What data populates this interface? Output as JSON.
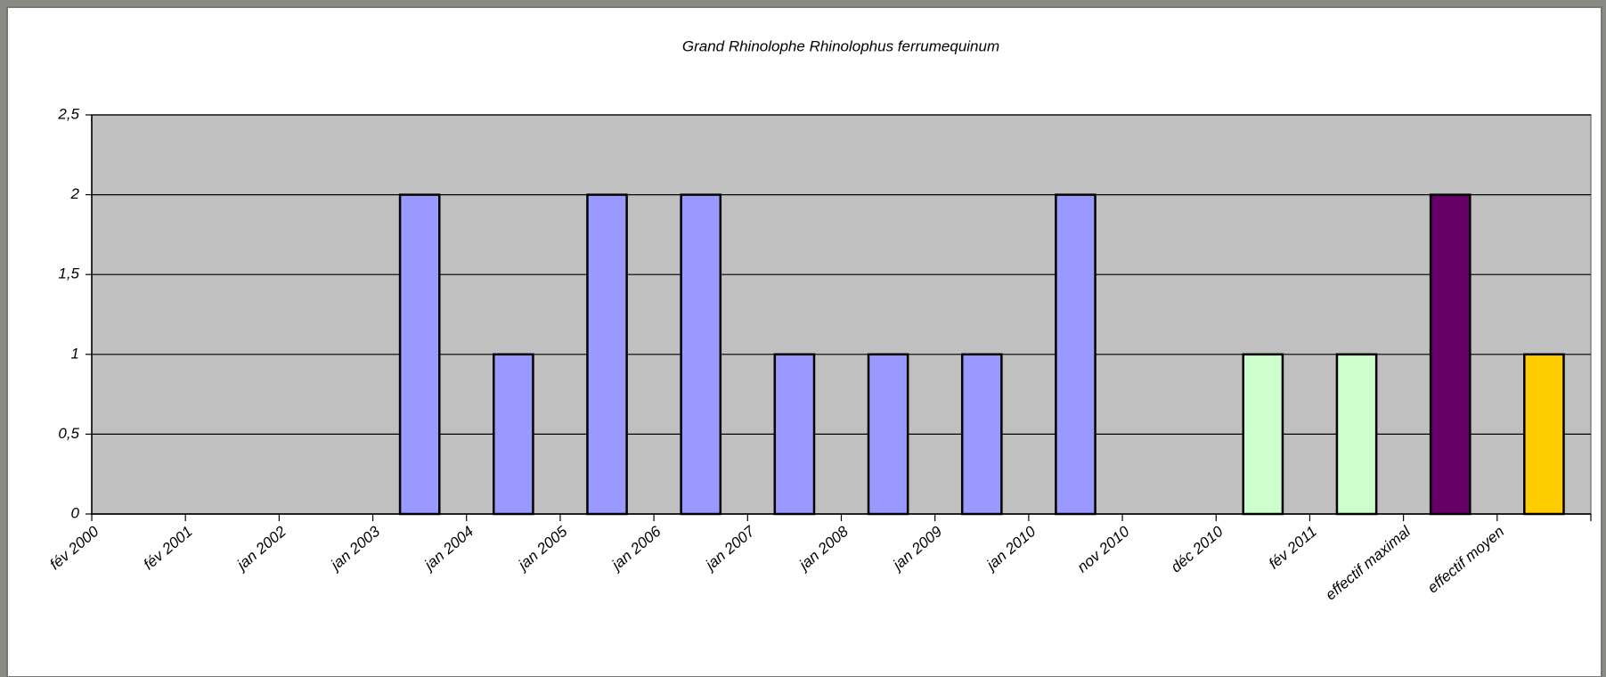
{
  "chart_data": {
    "type": "bar",
    "title": "Grand Rhinolophe Rhinolophus ferrumequinum",
    "categories": [
      "fév 2000",
      "fév 2001",
      "jan 2002",
      "jan 2003",
      "jan 2004",
      "jan 2005",
      "jan 2006",
      "jan 2007",
      "jan 2008",
      "jan 2009",
      "jan 2010",
      "nov 2010",
      "déc 2010",
      "fév 2011",
      "effectif maximal",
      "effectif moyen"
    ],
    "values": [
      0,
      0,
      0,
      2,
      1,
      2,
      2,
      1,
      1,
      1,
      2,
      0,
      1,
      1,
      2,
      1
    ],
    "colors": [
      "#9999ff",
      "#9999ff",
      "#9999ff",
      "#9999ff",
      "#9999ff",
      "#9999ff",
      "#9999ff",
      "#9999ff",
      "#9999ff",
      "#9999ff",
      "#9999ff",
      "#ccffcc",
      "#ccffcc",
      "#ccffcc",
      "#660066",
      "#ffcc00"
    ],
    "ylim": [
      0,
      2.5
    ],
    "yticks": [
      0,
      {
        "value": 0.5,
        "label": "0,5"
      },
      1,
      {
        "value": 1.5,
        "label": "1,5"
      },
      2,
      {
        "value": 2.5,
        "label": "2,5"
      }
    ],
    "grid": true,
    "plot_background": "#c0c0c0"
  }
}
